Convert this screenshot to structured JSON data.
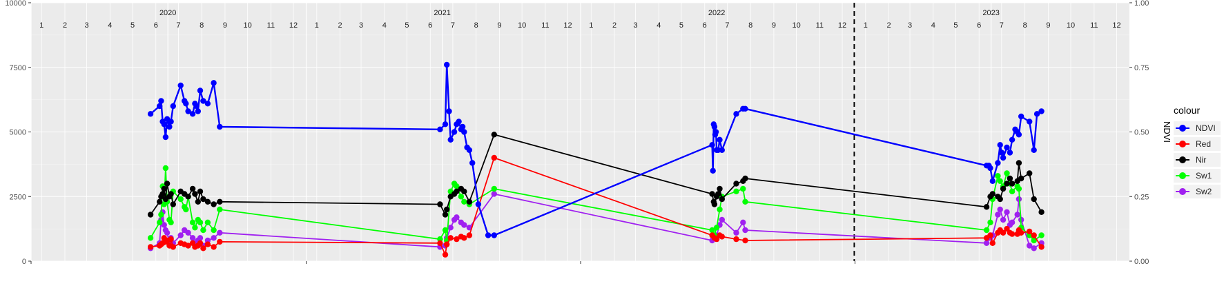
{
  "chart_data": {
    "type": "line",
    "title": "",
    "xlabel": "",
    "ylabel": "",
    "y2label": "NDVI",
    "ylim": [
      0,
      10000
    ],
    "y2lim": [
      0,
      1
    ],
    "yticks": [
      "0",
      "2500",
      "5000",
      "7500",
      "10000"
    ],
    "y2ticks": [
      "0.00",
      "0.25",
      "0.50",
      "0.75",
      "1.00"
    ],
    "year_labels": [
      "2020",
      "2021",
      "2022",
      "2023"
    ],
    "month_labels": [
      "1",
      "2",
      "3",
      "4",
      "5",
      "6",
      "7",
      "8",
      "9",
      "10",
      "11",
      "12"
    ],
    "reference_line_date": "2022-12-31",
    "legend_title": "colour",
    "legend_position": "right",
    "grid": true,
    "series": [
      {
        "name": "NDVI",
        "color": "#0000ff",
        "axis": "right",
        "x": [
          "2020-06-08",
          "2020-06-20",
          "2020-06-22",
          "2020-06-24",
          "2020-06-26",
          "2020-06-28",
          "2020-06-30",
          "2020-07-03",
          "2020-07-05",
          "2020-07-08",
          "2020-07-18",
          "2020-07-23",
          "2020-07-25",
          "2020-07-28",
          "2020-08-03",
          "2020-08-06",
          "2020-08-08",
          "2020-08-10",
          "2020-08-13",
          "2020-08-17",
          "2020-08-23",
          "2020-08-31",
          "2020-09-08",
          "2021-06-28",
          "2021-07-05",
          "2021-07-07",
          "2021-07-10",
          "2021-07-12",
          "2021-07-17",
          "2021-07-20",
          "2021-07-23",
          "2021-07-26",
          "2021-07-28",
          "2021-07-30",
          "2021-08-03",
          "2021-08-06",
          "2021-08-10",
          "2021-08-18",
          "2021-08-31",
          "2021-09-08",
          "2022-06-25",
          "2022-06-26",
          "2022-06-27",
          "2022-06-28",
          "2022-06-29",
          "2022-06-30",
          "2022-07-01",
          "2022-07-03",
          "2022-07-05",
          "2022-07-08",
          "2022-07-27",
          "2022-08-05",
          "2022-08-08",
          "2023-06-25",
          "2023-06-28",
          "2023-06-30",
          "2023-07-03",
          "2023-07-10",
          "2023-07-13",
          "2023-07-15",
          "2023-07-17",
          "2023-07-22",
          "2023-07-26",
          "2023-07-29",
          "2023-08-02",
          "2023-08-05",
          "2023-08-07",
          "2023-08-10",
          "2023-08-21",
          "2023-08-27",
          "2023-08-31",
          "2023-09-06"
        ],
        "values": [
          0.57,
          0.6,
          0.62,
          0.54,
          0.53,
          0.48,
          0.55,
          0.52,
          0.54,
          0.6,
          0.68,
          0.62,
          0.61,
          0.58,
          0.57,
          0.61,
          0.6,
          0.58,
          0.66,
          0.62,
          0.61,
          0.69,
          0.52,
          0.51,
          0.53,
          0.76,
          0.58,
          0.47,
          0.5,
          0.53,
          0.54,
          0.51,
          0.52,
          0.5,
          0.44,
          0.43,
          0.38,
          0.22,
          0.1,
          0.1,
          0.45,
          0.35,
          0.53,
          0.52,
          0.49,
          0.5,
          0.43,
          0.43,
          0.47,
          0.43,
          0.57,
          0.59,
          0.59,
          0.37,
          0.37,
          0.36,
          0.31,
          0.38,
          0.45,
          0.42,
          0.4,
          0.44,
          0.42,
          0.47,
          0.51,
          0.5,
          0.49,
          0.56,
          0.54,
          0.43,
          0.57,
          0.58
        ]
      },
      {
        "name": "Red",
        "color": "#ff0000",
        "axis": "left",
        "x": [
          "2020-06-08",
          "2020-06-20",
          "2020-06-22",
          "2020-06-24",
          "2020-06-26",
          "2020-06-28",
          "2020-06-30",
          "2020-07-03",
          "2020-07-05",
          "2020-07-08",
          "2020-07-18",
          "2020-07-23",
          "2020-07-28",
          "2020-08-03",
          "2020-08-06",
          "2020-08-10",
          "2020-08-13",
          "2020-08-17",
          "2020-08-23",
          "2020-08-31",
          "2020-09-08",
          "2021-06-28",
          "2021-07-05",
          "2021-07-07",
          "2021-07-12",
          "2021-07-20",
          "2021-07-26",
          "2021-07-30",
          "2021-08-06",
          "2021-09-08",
          "2022-06-25",
          "2022-06-28",
          "2022-07-01",
          "2022-07-05",
          "2022-07-08",
          "2022-07-27",
          "2022-08-08",
          "2023-06-25",
          "2023-06-30",
          "2023-07-03",
          "2023-07-10",
          "2023-07-13",
          "2023-07-17",
          "2023-07-22",
          "2023-07-26",
          "2023-07-29",
          "2023-08-05",
          "2023-08-07",
          "2023-08-10",
          "2023-08-21",
          "2023-08-27",
          "2023-09-06"
        ],
        "values": [
          550,
          600,
          650,
          700,
          900,
          750,
          800,
          600,
          850,
          550,
          700,
          650,
          600,
          700,
          550,
          600,
          700,
          500,
          650,
          550,
          750,
          700,
          250,
          650,
          900,
          850,
          950,
          900,
          1000,
          4000,
          1000,
          900,
          850,
          1000,
          950,
          850,
          800,
          900,
          1000,
          700,
          1100,
          1200,
          1100,
          1250,
          1100,
          1050,
          1050,
          1200,
          1100,
          1150,
          1000,
          550
        ]
      },
      {
        "name": "Nir",
        "color": "#000000",
        "axis": "left",
        "x": [
          "2020-06-08",
          "2020-06-20",
          "2020-06-22",
          "2020-06-24",
          "2020-06-26",
          "2020-06-28",
          "2020-06-30",
          "2020-07-03",
          "2020-07-05",
          "2020-07-08",
          "2020-07-18",
          "2020-07-23",
          "2020-07-28",
          "2020-08-03",
          "2020-08-06",
          "2020-08-10",
          "2020-08-13",
          "2020-08-17",
          "2020-08-23",
          "2020-08-31",
          "2020-09-08",
          "2021-06-28",
          "2021-07-05",
          "2021-07-07",
          "2021-07-12",
          "2021-07-17",
          "2021-07-20",
          "2021-07-26",
          "2021-07-30",
          "2021-08-06",
          "2021-09-08",
          "2022-06-25",
          "2022-06-27",
          "2022-06-28",
          "2022-07-01",
          "2022-07-03",
          "2022-07-05",
          "2022-07-08",
          "2022-07-27",
          "2022-08-05",
          "2022-08-08",
          "2023-06-25",
          "2023-06-30",
          "2023-07-03",
          "2023-07-10",
          "2023-07-13",
          "2023-07-17",
          "2023-07-22",
          "2023-07-26",
          "2023-07-29",
          "2023-08-05",
          "2023-08-07",
          "2023-08-10",
          "2023-08-21",
          "2023-08-27",
          "2023-09-06"
        ],
        "values": [
          1800,
          2300,
          2500,
          2600,
          2800,
          2400,
          3000,
          2500,
          2600,
          2200,
          2700,
          2600,
          2500,
          2800,
          2600,
          2300,
          2700,
          2400,
          2300,
          2200,
          2300,
          2200,
          1800,
          2000,
          2500,
          2600,
          2700,
          2800,
          2700,
          2300,
          4900,
          2600,
          2300,
          2200,
          2500,
          2600,
          2800,
          2400,
          3000,
          3100,
          3200,
          2100,
          2500,
          2600,
          2500,
          2400,
          2800,
          3000,
          3200,
          3000,
          3100,
          3800,
          3200,
          3400,
          2400,
          1900
        ]
      },
      {
        "name": "Sw1",
        "color": "#00ff00",
        "axis": "left",
        "x": [
          "2020-06-08",
          "2020-06-20",
          "2020-06-22",
          "2020-06-24",
          "2020-06-26",
          "2020-06-28",
          "2020-06-30",
          "2020-07-03",
          "2020-07-05",
          "2020-07-08",
          "2020-07-18",
          "2020-07-23",
          "2020-07-25",
          "2020-07-28",
          "2020-08-03",
          "2020-08-06",
          "2020-08-10",
          "2020-08-13",
          "2020-08-17",
          "2020-08-23",
          "2020-08-31",
          "2020-09-08",
          "2021-06-28",
          "2021-07-05",
          "2021-07-07",
          "2021-07-12",
          "2021-07-17",
          "2021-07-20",
          "2021-07-26",
          "2021-07-30",
          "2021-08-06",
          "2021-09-08",
          "2022-06-25",
          "2022-06-28",
          "2022-07-01",
          "2022-07-05",
          "2022-07-08",
          "2022-07-27",
          "2022-08-05",
          "2022-08-08",
          "2023-06-25",
          "2023-06-30",
          "2023-07-03",
          "2023-07-10",
          "2023-07-13",
          "2023-07-17",
          "2023-07-22",
          "2023-07-26",
          "2023-07-29",
          "2023-08-05",
          "2023-08-07",
          "2023-08-10",
          "2023-08-21",
          "2023-08-27",
          "2023-09-06"
        ],
        "values": [
          900,
          1500,
          1800,
          2900,
          2200,
          3600,
          2300,
          1600,
          1500,
          2700,
          2400,
          2100,
          2000,
          2500,
          1500,
          1300,
          1600,
          1500,
          1200,
          1500,
          1200,
          2000,
          850,
          1200,
          800,
          2700,
          3000,
          2900,
          2500,
          2300,
          2200,
          2800,
          1200,
          1000,
          1300,
          2000,
          2500,
          2700,
          2800,
          2300,
          1200,
          1500,
          2400,
          3300,
          3100,
          2900,
          3400,
          3000,
          2700,
          2900,
          2800,
          1300,
          1000,
          800,
          1000
        ]
      },
      {
        "name": "Sw2",
        "color": "#a020f0",
        "axis": "left",
        "x": [
          "2020-06-08",
          "2020-06-20",
          "2020-06-22",
          "2020-06-24",
          "2020-06-26",
          "2020-06-28",
          "2020-06-30",
          "2020-07-03",
          "2020-07-05",
          "2020-07-08",
          "2020-07-18",
          "2020-07-23",
          "2020-07-28",
          "2020-08-03",
          "2020-08-06",
          "2020-08-10",
          "2020-08-13",
          "2020-08-17",
          "2020-08-23",
          "2020-08-31",
          "2020-09-08",
          "2021-06-28",
          "2021-07-05",
          "2021-07-07",
          "2021-07-12",
          "2021-07-17",
          "2021-07-20",
          "2021-07-26",
          "2021-07-30",
          "2021-08-06",
          "2021-09-08",
          "2022-06-25",
          "2022-06-28",
          "2022-07-01",
          "2022-07-05",
          "2022-07-08",
          "2022-07-27",
          "2022-08-05",
          "2022-08-08",
          "2023-06-25",
          "2023-06-30",
          "2023-07-03",
          "2023-07-10",
          "2023-07-13",
          "2023-07-17",
          "2023-07-22",
          "2023-07-26",
          "2023-07-29",
          "2023-08-05",
          "2023-08-07",
          "2023-08-10",
          "2023-08-21",
          "2023-08-27",
          "2023-09-06"
        ],
        "values": [
          500,
          700,
          1600,
          1900,
          1400,
          1200,
          1100,
          700,
          900,
          700,
          1000,
          1200,
          1100,
          900,
          700,
          800,
          900,
          600,
          800,
          900,
          1100,
          550,
          600,
          900,
          1300,
          1600,
          1700,
          1500,
          1400,
          1300,
          2600,
          800,
          900,
          1000,
          1400,
          1600,
          1100,
          1500,
          1200,
          700,
          900,
          1000,
          1800,
          2000,
          1600,
          1900,
          1400,
          1500,
          1800,
          2400,
          1600,
          600,
          500,
          700
        ]
      }
    ]
  }
}
